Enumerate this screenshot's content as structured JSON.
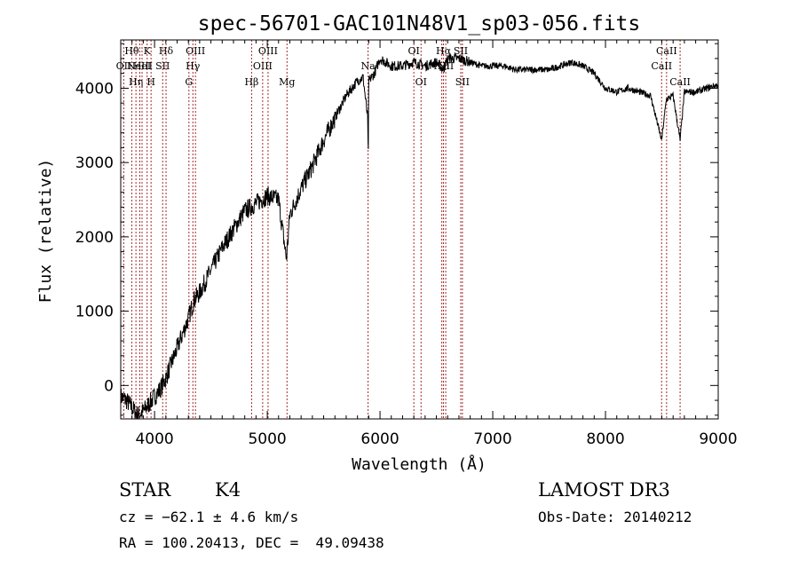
{
  "chart_data": {
    "type": "line",
    "title": "spec-56701-GAC101N48V1_sp03-056.fits",
    "xlabel": "Wavelength (Å)",
    "ylabel": "Flux (relative)",
    "xlim": [
      3700,
      9000
    ],
    "ylim": [
      -450,
      4650
    ],
    "x_ticks": [
      4000,
      5000,
      6000,
      7000,
      8000,
      9000
    ],
    "x_tick_labels": [
      "4000",
      "5000",
      "6000",
      "7000",
      "8000",
      "9000"
    ],
    "y_ticks": [
      0,
      1000,
      2000,
      3000,
      4000
    ],
    "y_tick_labels": [
      "0",
      "1000",
      "2000",
      "3000",
      "4000"
    ],
    "colors": {
      "spectrum": "#000000",
      "line_marker": "#a52a2a"
    },
    "series": [
      {
        "name": "spectrum",
        "x": [
          3700,
          3750,
          3800,
          3850,
          3900,
          3950,
          4000,
          4050,
          4100,
          4150,
          4200,
          4250,
          4300,
          4350,
          4400,
          4450,
          4500,
          4600,
          4700,
          4800,
          4900,
          5000,
          5100,
          5170,
          5200,
          5300,
          5400,
          5500,
          5600,
          5700,
          5800,
          5850,
          5890,
          5895,
          5900,
          5950,
          6000,
          6050,
          6100,
          6200,
          6300,
          6400,
          6500,
          6563,
          6600,
          6700,
          6800,
          6900,
          7000,
          7100,
          7200,
          7300,
          7400,
          7500,
          7600,
          7700,
          7800,
          7900,
          8000,
          8100,
          8200,
          8300,
          8400,
          8498,
          8540,
          8600,
          8662,
          8700,
          8800,
          8900,
          9000
        ],
        "y": [
          -150,
          -200,
          -300,
          -400,
          -350,
          -250,
          -150,
          -50,
          100,
          300,
          500,
          700,
          900,
          1150,
          1250,
          1400,
          1550,
          1850,
          2100,
          2350,
          2450,
          2550,
          2500,
          1700,
          2300,
          2650,
          2950,
          3300,
          3600,
          3900,
          4100,
          4150,
          3600,
          3000,
          4100,
          4200,
          4400,
          4350,
          4300,
          4300,
          4350,
          4300,
          4350,
          4250,
          4400,
          4400,
          4350,
          4300,
          4300,
          4300,
          4250,
          4250,
          4250,
          4250,
          4300,
          4350,
          4300,
          4200,
          4000,
          3950,
          4000,
          3950,
          3900,
          3300,
          3850,
          3900,
          3300,
          3950,
          3950,
          4000,
          4050
        ]
      }
    ],
    "line_markers": [
      {
        "wavelength": 3727,
        "label": "OII",
        "row": 1
      },
      {
        "wavelength": 3798,
        "label": "Hθ",
        "row": 0
      },
      {
        "wavelength": 3835,
        "label": "Hη",
        "row": 2
      },
      {
        "wavelength": 3869,
        "label": "NeIII",
        "row": 1
      },
      {
        "wavelength": 3889,
        "label": "HeI",
        "row": 1
      },
      {
        "wavelength": 3934,
        "label": "K",
        "row": 0
      },
      {
        "wavelength": 3969,
        "label": "H",
        "row": 2
      },
      {
        "wavelength": 4072,
        "label": "SII",
        "row": 1
      },
      {
        "wavelength": 4102,
        "label": "Hδ",
        "row": 0
      },
      {
        "wavelength": 4305,
        "label": "G",
        "row": 2
      },
      {
        "wavelength": 4340,
        "label": "Hγ",
        "row": 1
      },
      {
        "wavelength": 4363,
        "label": "OIII",
        "row": 0
      },
      {
        "wavelength": 4861,
        "label": "Hβ",
        "row": 2
      },
      {
        "wavelength": 4959,
        "label": "OIII",
        "row": 1
      },
      {
        "wavelength": 5007,
        "label": "OIII",
        "row": 0
      },
      {
        "wavelength": 5175,
        "label": "Mg",
        "row": 2
      },
      {
        "wavelength": 5894,
        "label": "Na",
        "row": 1
      },
      {
        "wavelength": 6300,
        "label": "OI",
        "row": 0
      },
      {
        "wavelength": 6364,
        "label": "OI",
        "row": 2
      },
      {
        "wavelength": 6548,
        "label": "NII",
        "row": 1
      },
      {
        "wavelength": 6563,
        "label": "Hα",
        "row": 0
      },
      {
        "wavelength": 6583,
        "label": "NII",
        "row": 1
      },
      {
        "wavelength": 6716,
        "label": "SII",
        "row": 0
      },
      {
        "wavelength": 6731,
        "label": "SII",
        "row": 2
      },
      {
        "wavelength": 8498,
        "label": "CaII",
        "row": 1
      },
      {
        "wavelength": 8542,
        "label": "CaII",
        "row": 0
      },
      {
        "wavelength": 8662,
        "label": "CaII",
        "row": 2
      }
    ]
  },
  "info": {
    "class": "STAR",
    "subclass": "K4",
    "cz": "cz = −62.1 ± 4.6 km/s",
    "coords": "RA = 100.20413, DEC =  49.09438",
    "survey": "LAMOST DR3",
    "obs_date": "Obs-Date: 20140212"
  }
}
